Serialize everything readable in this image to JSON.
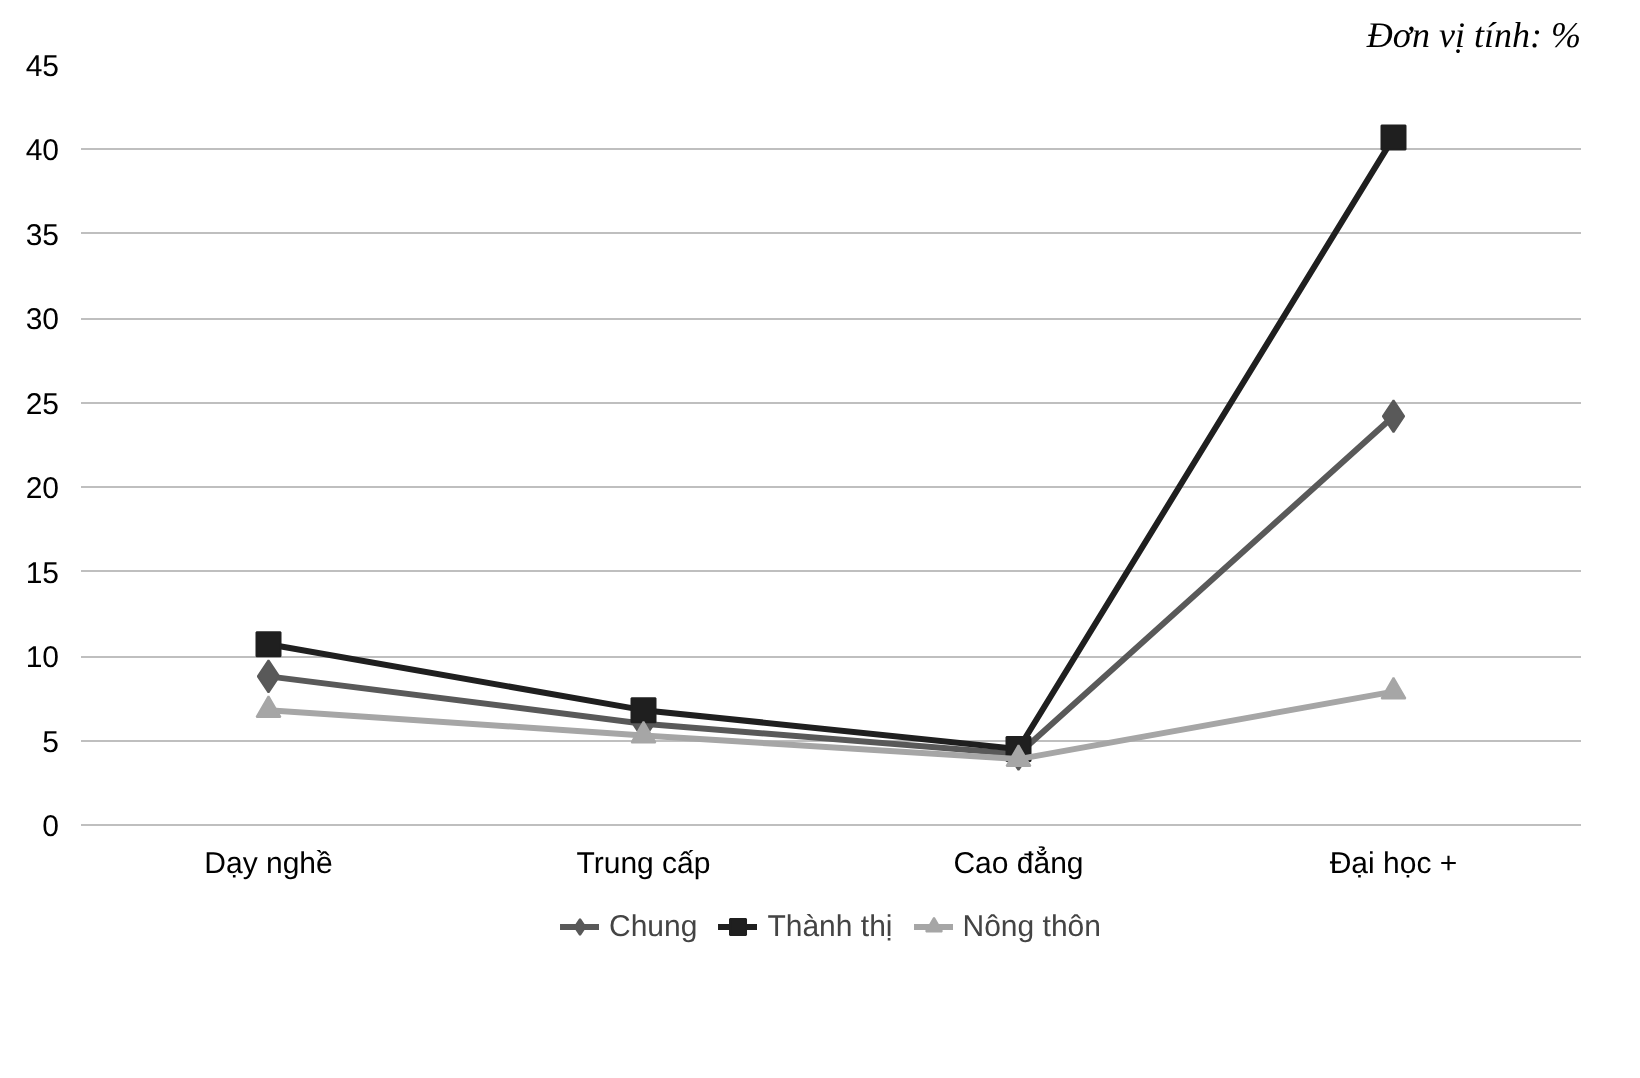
{
  "chart_data": {
    "type": "line",
    "annotations": [
      "Đơn vị tính: %"
    ],
    "categories": [
      "Dạy nghề",
      "Trung cấp",
      "Cao đẳng",
      "Đại học +"
    ],
    "series": [
      {
        "name": "Chung",
        "color": "#595959",
        "values": [
          8.8,
          6.0,
          4.2,
          24.2
        ],
        "marker": "diamond"
      },
      {
        "name": "Thành thị",
        "color": "#1f1f1f",
        "values": [
          10.7,
          6.8,
          4.5,
          40.7
        ],
        "marker": "square"
      },
      {
        "name": "Nông thôn",
        "color": "#a6a6a6",
        "values": [
          6.8,
          5.3,
          3.9,
          7.9
        ],
        "marker": "triangle"
      }
    ],
    "ylim": [
      0,
      45
    ],
    "yticks": [
      0,
      5,
      10,
      15,
      20,
      25,
      30,
      35,
      40,
      45
    ],
    "grid": "y",
    "legend": "bottom",
    "line_style": "solid"
  }
}
